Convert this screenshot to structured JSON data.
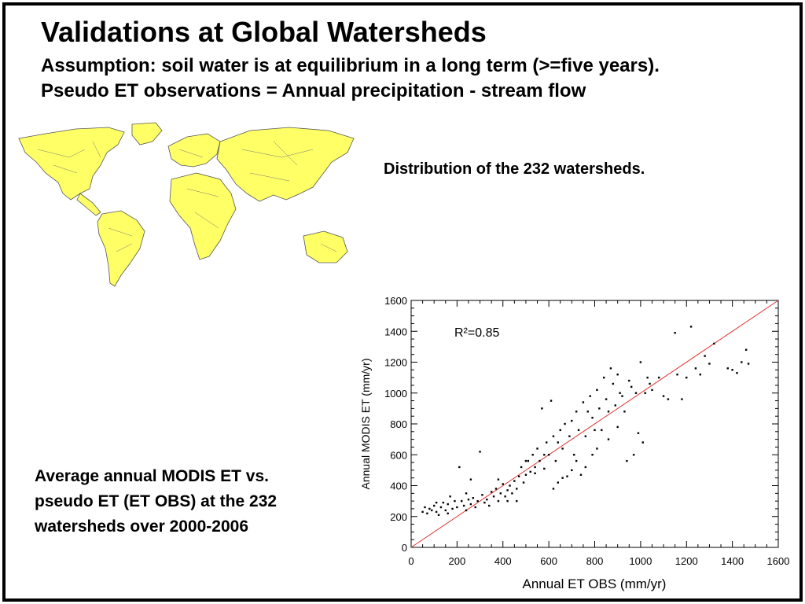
{
  "slide": {
    "title": "Validations at Global Watersheds",
    "assumption": "Assumption: soil water is at equilibrium in a long term (>=five years).",
    "pseudo_et": "Pseudo ET observations = Annual precipitation - stream flow",
    "map_caption": "Distribution of the 232 watersheds.",
    "plot_caption": [
      "Average annual MODIS ET vs.",
      "pseudo ET (ET OBS) at the 232",
      "watersheds over 2000-2006"
    ]
  },
  "colors": {
    "land_fill": "#f2f25c",
    "watershed_fill": "#ffff66",
    "border": "#555555",
    "fit_line": "#e03030",
    "points": "#000000"
  },
  "chart_data": {
    "type": "scatter",
    "xlabel": "Annual ET OBS (mm/yr)",
    "ylabel": "Annual MODIS ET (mm/yr)",
    "annotation": "R²=0.85",
    "xlim": [
      0,
      1600
    ],
    "ylim": [
      0,
      1600
    ],
    "xticks": [
      0,
      200,
      400,
      600,
      800,
      1000,
      1200,
      1400,
      1600
    ],
    "yticks": [
      0,
      200,
      400,
      600,
      800,
      1000,
      1200,
      1400,
      1600
    ],
    "grid": false,
    "reference_line": [
      [
        0,
        0
      ],
      [
        1600,
        1600
      ]
    ],
    "points": [
      [
        50,
        230
      ],
      [
        60,
        260
      ],
      [
        70,
        220
      ],
      [
        80,
        250
      ],
      [
        90,
        240
      ],
      [
        100,
        270
      ],
      [
        110,
        230
      ],
      [
        120,
        210
      ],
      [
        130,
        260
      ],
      [
        140,
        290
      ],
      [
        150,
        240
      ],
      [
        160,
        280
      ],
      [
        170,
        330
      ],
      [
        180,
        250
      ],
      [
        190,
        300
      ],
      [
        200,
        260
      ],
      [
        210,
        520
      ],
      [
        220,
        300
      ],
      [
        230,
        270
      ],
      [
        240,
        240
      ],
      [
        250,
        310
      ],
      [
        260,
        280
      ],
      [
        270,
        320
      ],
      [
        280,
        260
      ],
      [
        290,
        300
      ],
      [
        300,
        620
      ],
      [
        310,
        340
      ],
      [
        320,
        290
      ],
      [
        330,
        310
      ],
      [
        340,
        270
      ],
      [
        350,
        360
      ],
      [
        360,
        330
      ],
      [
        370,
        380
      ],
      [
        380,
        300
      ],
      [
        390,
        350
      ],
      [
        400,
        410
      ],
      [
        410,
        330
      ],
      [
        420,
        370
      ],
      [
        430,
        400
      ],
      [
        440,
        350
      ],
      [
        450,
        430
      ],
      [
        460,
        380
      ],
      [
        470,
        460
      ],
      [
        480,
        520
      ],
      [
        490,
        420
      ],
      [
        500,
        470
      ],
      [
        510,
        560
      ],
      [
        520,
        490
      ],
      [
        530,
        600
      ],
      [
        540,
        520
      ],
      [
        550,
        640
      ],
      [
        560,
        560
      ],
      [
        570,
        900
      ],
      [
        580,
        510
      ],
      [
        590,
        680
      ],
      [
        600,
        600
      ],
      [
        610,
        950
      ],
      [
        620,
        720
      ],
      [
        630,
        560
      ],
      [
        640,
        680
      ],
      [
        650,
        760
      ],
      [
        660,
        640
      ],
      [
        670,
        800
      ],
      [
        680,
        460
      ],
      [
        690,
        720
      ],
      [
        700,
        820
      ],
      [
        710,
        600
      ],
      [
        720,
        880
      ],
      [
        730,
        760
      ],
      [
        740,
        470
      ],
      [
        750,
        940
      ],
      [
        760,
        720
      ],
      [
        770,
        880
      ],
      [
        780,
        980
      ],
      [
        790,
        840
      ],
      [
        800,
        760
      ],
      [
        810,
        1020
      ],
      [
        820,
        900
      ],
      [
        830,
        760
      ],
      [
        840,
        1100
      ],
      [
        850,
        960
      ],
      [
        860,
        880
      ],
      [
        870,
        1160
      ],
      [
        880,
        1060
      ],
      [
        890,
        920
      ],
      [
        900,
        1120
      ],
      [
        910,
        1000
      ],
      [
        920,
        980
      ],
      [
        930,
        880
      ],
      [
        940,
        560
      ],
      [
        950,
        1080
      ],
      [
        960,
        1040
      ],
      [
        970,
        600
      ],
      [
        980,
        1000
      ],
      [
        990,
        740
      ],
      [
        1000,
        1200
      ],
      [
        1010,
        680
      ],
      [
        1020,
        1000
      ],
      [
        1030,
        1100
      ],
      [
        1040,
        1060
      ],
      [
        1050,
        1020
      ],
      [
        1080,
        1100
      ],
      [
        1100,
        980
      ],
      [
        1120,
        960
      ],
      [
        1150,
        1390
      ],
      [
        1160,
        1120
      ],
      [
        1180,
        960
      ],
      [
        1200,
        1100
      ],
      [
        1220,
        1430
      ],
      [
        1240,
        1160
      ],
      [
        1260,
        1120
      ],
      [
        1280,
        1240
      ],
      [
        1300,
        1190
      ],
      [
        1320,
        1320
      ],
      [
        1400,
        1150
      ],
      [
        1420,
        1130
      ],
      [
        1440,
        1200
      ],
      [
        1460,
        1280
      ],
      [
        1470,
        1190
      ],
      [
        1380,
        1160
      ],
      [
        620,
        380
      ],
      [
        640,
        420
      ],
      [
        660,
        450
      ],
      [
        700,
        500
      ],
      [
        720,
        560
      ],
      [
        760,
        520
      ],
      [
        790,
        600
      ],
      [
        810,
        640
      ],
      [
        860,
        700
      ],
      [
        900,
        780
      ],
      [
        380,
        440
      ],
      [
        420,
        300
      ],
      [
        460,
        300
      ],
      [
        500,
        560
      ],
      [
        540,
        480
      ],
      [
        580,
        600
      ],
      [
        260,
        440
      ],
      [
        240,
        350
      ],
      [
        160,
        220
      ],
      [
        110,
        290
      ]
    ]
  },
  "map": {
    "continents": [
      "North America",
      "South America",
      "Europe",
      "Africa",
      "Asia",
      "Australia"
    ]
  }
}
